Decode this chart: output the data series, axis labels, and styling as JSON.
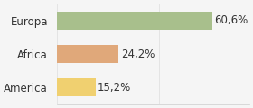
{
  "categories": [
    "America",
    "Africa",
    "Europa"
  ],
  "values": [
    15.2,
    24.2,
    60.6
  ],
  "labels": [
    "15,2%",
    "24,2%",
    "60,6%"
  ],
  "bar_colors": [
    "#f0d070",
    "#e0a87a",
    "#a8bf8c"
  ],
  "background_color": "#f5f5f5",
  "xlim": [
    0,
    75
  ],
  "label_fontsize": 8.5,
  "tick_fontsize": 8.5
}
